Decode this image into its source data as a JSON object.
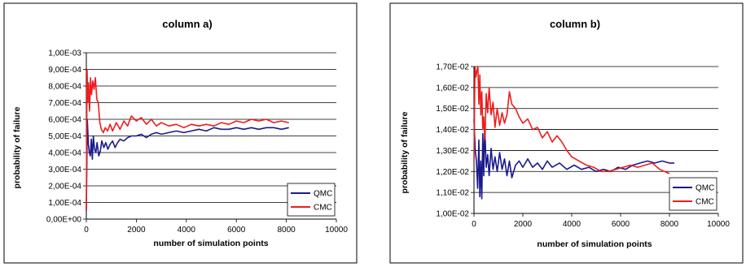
{
  "chart_data": [
    {
      "type": "line",
      "title": "column a)",
      "xlabel": "number of simulation points",
      "ylabel": "probability of failure",
      "xlim": [
        0,
        10000
      ],
      "ylim": [
        0,
        0.001
      ],
      "xticks": [
        0,
        2000,
        4000,
        6000,
        8000,
        10000
      ],
      "x_tick_labels": [
        "0",
        "2000",
        "4000",
        "6000",
        "8000",
        "10000"
      ],
      "yticks": [
        0,
        0.0001,
        0.0002,
        0.0003,
        0.0004,
        0.0005,
        0.0006,
        0.0007,
        0.0008,
        0.0009,
        0.001
      ],
      "y_tick_labels": [
        "0,00E+00",
        "1,00E-04",
        "2,00E-04",
        "3,00E-04",
        "4,00E-04",
        "5,00E-04",
        "6,00E-04",
        "7,00E-04",
        "8,00E-04",
        "9,00E-04",
        "1,00E-03"
      ],
      "grid": "horizontal",
      "legend": "bottom-right",
      "series": [
        {
          "name": "QMC",
          "color": "#1a1a8c",
          "x": [
            0,
            40,
            80,
            120,
            160,
            200,
            240,
            280,
            330,
            380,
            430,
            500,
            560,
            620,
            700,
            780,
            860,
            950,
            1050,
            1150,
            1250,
            1350,
            1500,
            1650,
            1800,
            2000,
            2200,
            2400,
            2600,
            2800,
            3000,
            3300,
            3600,
            3900,
            4200,
            4500,
            4800,
            5100,
            5400,
            5700,
            6000,
            6300,
            6600,
            6900,
            7200,
            7500,
            7800,
            8100
          ],
          "y": [
            5e-05,
            0.0006,
            0.00045,
            0.0004,
            0.00038,
            0.00048,
            0.00036,
            0.0005,
            0.00042,
            0.0004,
            0.00046,
            0.00038,
            0.00041,
            0.00047,
            0.00043,
            0.00046,
            0.00042,
            0.00045,
            0.00047,
            0.00043,
            0.00046,
            0.00048,
            0.00047,
            0.00049,
            0.0005,
            0.0005,
            0.00051,
            0.00049,
            0.00051,
            0.00052,
            0.00051,
            0.00052,
            0.00053,
            0.00052,
            0.00053,
            0.00054,
            0.00053,
            0.00055,
            0.00054,
            0.00054,
            0.00055,
            0.00054,
            0.00055,
            0.00054,
            0.00055,
            0.00055,
            0.00054,
            0.00055
          ]
        },
        {
          "name": "CMC",
          "color": "#ee1c1c",
          "x": [
            0,
            30,
            60,
            90,
            130,
            170,
            210,
            260,
            310,
            360,
            420,
            480,
            540,
            600,
            680,
            760,
            850,
            950,
            1050,
            1200,
            1350,
            1500,
            1650,
            1800,
            2000,
            2200,
            2400,
            2600,
            2800,
            3000,
            3300,
            3600,
            3900,
            4200,
            4500,
            4800,
            5100,
            5400,
            5700,
            6000,
            6300,
            6600,
            6900,
            7200,
            7500,
            7800,
            8100
          ],
          "y": [
            5e-05,
            0.0009,
            0.0007,
            0.00082,
            0.00065,
            0.00085,
            0.00075,
            0.00083,
            0.00078,
            0.00085,
            0.00072,
            0.0007,
            0.00058,
            0.00054,
            0.00052,
            0.00055,
            0.00053,
            0.00057,
            0.00053,
            0.00058,
            0.00054,
            0.00059,
            0.00056,
            0.00062,
            0.00059,
            0.00061,
            0.00057,
            0.0006,
            0.00056,
            0.00058,
            0.00056,
            0.00057,
            0.00055,
            0.00057,
            0.00056,
            0.00057,
            0.00056,
            0.00058,
            0.00057,
            0.00059,
            0.00058,
            0.0006,
            0.00059,
            0.0006,
            0.00058,
            0.00059,
            0.00058
          ]
        }
      ]
    },
    {
      "type": "line",
      "title": "column b)",
      "xlabel": "number of simulation points",
      "ylabel": "probability of failure",
      "xlim": [
        0,
        10000
      ],
      "ylim": [
        0.01,
        0.017
      ],
      "xticks": [
        0,
        2000,
        4000,
        6000,
        8000,
        10000
      ],
      "x_tick_labels": [
        "0",
        "2000",
        "4000",
        "6000",
        "8000",
        "10000"
      ],
      "yticks": [
        0.01,
        0.011,
        0.012,
        0.013,
        0.014,
        0.015,
        0.016,
        0.017
      ],
      "y_tick_labels": [
        "1,00E-02",
        "1,10E-02",
        "1,20E-02",
        "1,30E-02",
        "1,40E-02",
        "1,50E-02",
        "1,60E-02",
        "1,70E-02"
      ],
      "grid": "horizontal",
      "legend": "bottom-right",
      "series": [
        {
          "name": "QMC",
          "color": "#1a1a8c",
          "x": [
            0,
            50,
            100,
            150,
            200,
            240,
            280,
            320,
            360,
            400,
            440,
            500,
            560,
            620,
            700,
            780,
            860,
            950,
            1050,
            1150,
            1250,
            1350,
            1450,
            1550,
            1700,
            1850,
            2000,
            2200,
            2400,
            2600,
            2800,
            3000,
            3200,
            3500,
            3800,
            4100,
            4400,
            4700,
            5000,
            5300,
            5600,
            5900,
            6200,
            6500,
            6800,
            7100,
            7400,
            7700,
            8000,
            8200
          ],
          "y": [
            0.0145,
            0.013,
            0.0125,
            0.0112,
            0.0135,
            0.0108,
            0.0125,
            0.0107,
            0.0138,
            0.0118,
            0.0142,
            0.0122,
            0.0128,
            0.0118,
            0.0131,
            0.0121,
            0.0127,
            0.012,
            0.0129,
            0.0121,
            0.0126,
            0.0118,
            0.0125,
            0.0117,
            0.0123,
            0.0125,
            0.0122,
            0.0126,
            0.0122,
            0.0124,
            0.0121,
            0.0125,
            0.0122,
            0.0124,
            0.0121,
            0.0123,
            0.0121,
            0.0122,
            0.012,
            0.0121,
            0.012,
            0.0122,
            0.0121,
            0.0123,
            0.0124,
            0.0125,
            0.0124,
            0.0125,
            0.0124,
            0.0124
          ]
        },
        {
          "name": "CMC",
          "color": "#ee1c1c",
          "x": [
            0,
            40,
            80,
            120,
            160,
            200,
            240,
            280,
            320,
            360,
            400,
            450,
            500,
            560,
            620,
            700,
            780,
            860,
            950,
            1050,
            1150,
            1250,
            1350,
            1450,
            1550,
            1700,
            1850,
            2000,
            2200,
            2400,
            2600,
            2800,
            3000,
            3200,
            3400,
            3600,
            3800,
            4000,
            4300,
            4600,
            4900,
            5200,
            5500,
            5800,
            6100,
            6400,
            6700,
            7000,
            7300,
            7600,
            7800,
            8000
          ],
          "y": [
            0.0125,
            0.017,
            0.0165,
            0.0168,
            0.017,
            0.0152,
            0.0166,
            0.0147,
            0.0158,
            0.014,
            0.0146,
            0.0135,
            0.0157,
            0.0148,
            0.016,
            0.0147,
            0.0153,
            0.0141,
            0.015,
            0.0142,
            0.0148,
            0.0143,
            0.0147,
            0.0158,
            0.0152,
            0.015,
            0.0146,
            0.0143,
            0.0145,
            0.014,
            0.0141,
            0.0136,
            0.0139,
            0.0134,
            0.0137,
            0.0134,
            0.013,
            0.0127,
            0.0125,
            0.0123,
            0.0122,
            0.012,
            0.012,
            0.0121,
            0.0122,
            0.0123,
            0.0122,
            0.0123,
            0.0124,
            0.0121,
            0.012,
            0.0119
          ]
        }
      ]
    }
  ]
}
